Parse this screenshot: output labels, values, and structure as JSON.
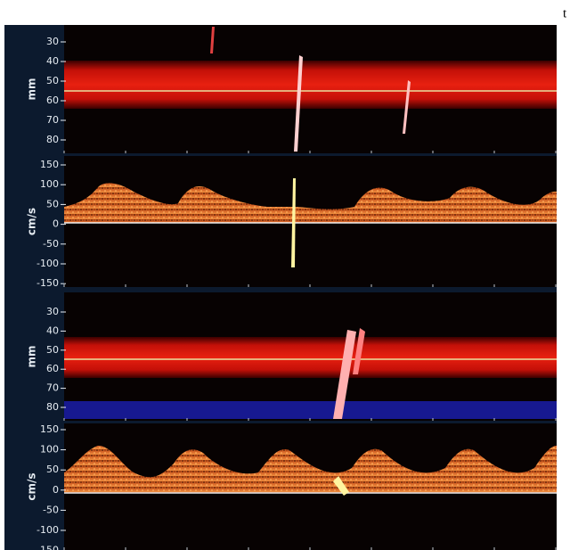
{
  "corner_text": "t",
  "panels": [
    {
      "axis_label": "mm",
      "ticks": [
        "30",
        "40",
        "50",
        "60",
        "70",
        "80"
      ]
    },
    {
      "axis_label": "cm/s",
      "ticks": [
        "150",
        "100",
        "50",
        "0",
        "-50",
        "-100",
        "-150"
      ]
    },
    {
      "axis_label": "mm",
      "ticks": [
        "30",
        "40",
        "50",
        "60",
        "70",
        "80"
      ]
    },
    {
      "axis_label": "cm/s",
      "ticks": [
        "150",
        "100",
        "50",
        "0",
        "-50",
        "-100",
        "-150"
      ]
    }
  ]
}
